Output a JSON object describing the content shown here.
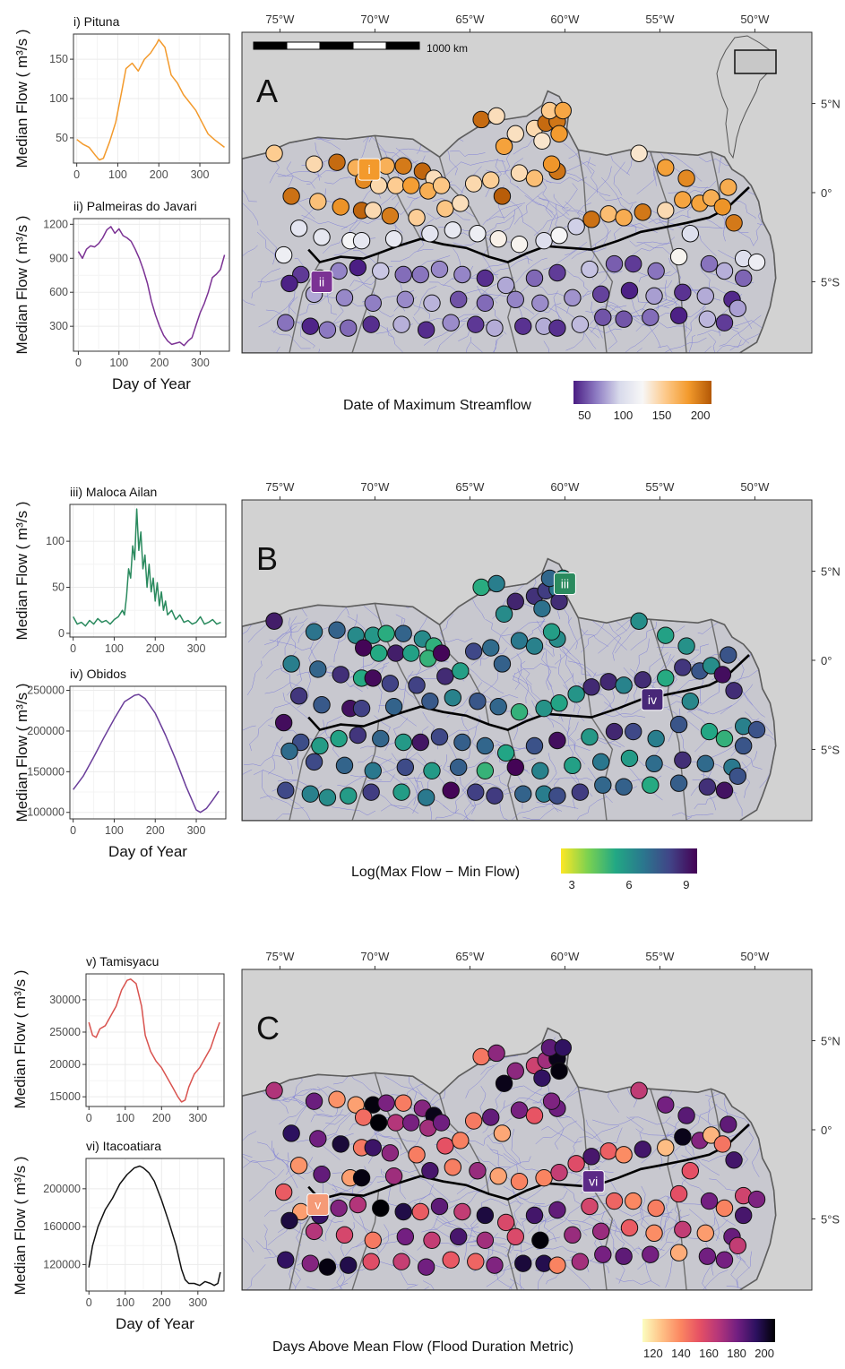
{
  "panels": [
    {
      "letter": "A",
      "legend_title": "Date of Maximum Streamflow",
      "legend_ticks": [
        "50",
        "100",
        "150",
        "200"
      ],
      "legend_stops": [
        "#4a1d83",
        "#8e7cc3",
        "#d8daeb",
        "#f7f7f7",
        "#fdc98a",
        "#f39a2c",
        "#b35806"
      ],
      "scalebar_label": "1000 km",
      "inset": true,
      "markers": [
        {
          "label": "i",
          "lon": -70.3,
          "lat": 1.3,
          "color": "#f39a2c"
        },
        {
          "label": "ii",
          "lon": -72.8,
          "lat": -5.0,
          "color": "#7b3294"
        }
      ]
    },
    {
      "letter": "B",
      "legend_title": "Log(Max Flow − Min Flow)",
      "legend_ticks": [
        "3",
        "6",
        "9"
      ],
      "legend_stops": [
        "#fde725",
        "#7ad151",
        "#22a884",
        "#2a788e",
        "#414487",
        "#440154"
      ],
      "scalebar_label": "",
      "inset": false,
      "markers": [
        {
          "label": "iii",
          "lon": -60.0,
          "lat": 4.3,
          "color": "#2a8a5e"
        },
        {
          "label": "iv",
          "lon": -55.4,
          "lat": -2.2,
          "color": "#482878"
        }
      ]
    },
    {
      "letter": "C",
      "legend_title": "Days Above Mean Flow (Flood Duration Metric)",
      "legend_ticks": [
        "120",
        "140",
        "160",
        "180",
        "200"
      ],
      "legend_stops": [
        "#fcfdbf",
        "#fec287",
        "#fb8761",
        "#e65164",
        "#b5367a",
        "#721f81",
        "#2c115f",
        "#000004"
      ],
      "scalebar_label": "",
      "inset": false,
      "markers": [
        {
          "label": "v",
          "lon": -73.0,
          "lat": -4.2,
          "color": "#f59a77"
        },
        {
          "label": "vi",
          "lon": -58.5,
          "lat": -2.9,
          "color": "#5b2a86"
        }
      ]
    }
  ],
  "map_axes": {
    "lon_ticks": [
      "75°W",
      "70°W",
      "65°W",
      "60°W",
      "55°W",
      "50°W"
    ],
    "lon_values": [
      -75,
      -70,
      -65,
      -60,
      -55,
      -50
    ],
    "lat_ticks": [
      "5°N",
      "0°",
      "5°S"
    ],
    "lat_values": [
      5,
      0,
      -5
    ],
    "lon_range": [
      -77.0,
      -47.0
    ],
    "lat_range": [
      -9.0,
      9.0
    ]
  },
  "chart_data": [
    {
      "type": "line",
      "title": "i) Pituna",
      "xlabel": "",
      "ylabel": "Median Flow ( m³/s )",
      "color": "#f39a2c",
      "xlim": [
        -8,
        372
      ],
      "ylim": [
        18,
        182
      ],
      "xticks": [
        0,
        100,
        200,
        300
      ],
      "yticks": [
        50,
        100,
        150
      ],
      "x": [
        0,
        15,
        30,
        45,
        55,
        65,
        80,
        95,
        110,
        120,
        135,
        150,
        165,
        180,
        195,
        200,
        215,
        230,
        245,
        260,
        275,
        290,
        305,
        320,
        335,
        350,
        360
      ],
      "y": [
        48,
        42,
        38,
        28,
        22,
        24,
        45,
        70,
        110,
        138,
        145,
        135,
        150,
        158,
        170,
        175,
        165,
        130,
        120,
        105,
        95,
        85,
        70,
        55,
        48,
        42,
        38
      ]
    },
    {
      "type": "line",
      "title": "ii) Palmeiras do Javari",
      "xlabel": "Day of Year",
      "ylabel": "Median Flow ( m³/s )",
      "color": "#7b3294",
      "xlim": [
        -12,
        372
      ],
      "ylim": [
        80,
        1250
      ],
      "xticks": [
        0,
        100,
        200,
        300
      ],
      "yticks": [
        300,
        600,
        900,
        1200
      ],
      "x": [
        0,
        10,
        20,
        30,
        40,
        50,
        60,
        70,
        80,
        90,
        100,
        110,
        120,
        130,
        140,
        150,
        160,
        170,
        180,
        190,
        200,
        210,
        220,
        230,
        240,
        250,
        260,
        270,
        280,
        290,
        300,
        310,
        320,
        330,
        340,
        350,
        360
      ],
      "y": [
        960,
        900,
        980,
        1010,
        1000,
        1030,
        1080,
        1150,
        1180,
        1120,
        1160,
        1100,
        1080,
        1050,
        980,
        900,
        800,
        680,
        520,
        400,
        300,
        220,
        170,
        140,
        150,
        160,
        130,
        170,
        200,
        310,
        420,
        500,
        600,
        730,
        760,
        800,
        930
      ]
    },
    {
      "type": "line",
      "title": "iii) Maloca Ailan",
      "xlabel": "",
      "ylabel": "Median Flow ( m³/s )",
      "color": "#2a8a5e",
      "xlim": [
        -8,
        372
      ],
      "ylim": [
        -4,
        140
      ],
      "xticks": [
        0,
        100,
        200,
        300
      ],
      "yticks": [
        0,
        50,
        100
      ],
      "x": [
        0,
        10,
        20,
        30,
        40,
        50,
        60,
        70,
        80,
        90,
        100,
        110,
        120,
        125,
        130,
        135,
        140,
        145,
        150,
        155,
        160,
        165,
        170,
        175,
        180,
        185,
        190,
        195,
        200,
        205,
        210,
        215,
        220,
        225,
        230,
        240,
        250,
        260,
        270,
        280,
        290,
        300,
        310,
        320,
        330,
        340,
        350,
        360
      ],
      "y": [
        18,
        10,
        12,
        8,
        14,
        10,
        16,
        12,
        14,
        10,
        15,
        18,
        25,
        20,
        40,
        70,
        60,
        95,
        80,
        135,
        90,
        110,
        70,
        85,
        50,
        75,
        45,
        60,
        35,
        55,
        30,
        45,
        25,
        35,
        20,
        25,
        15,
        20,
        12,
        14,
        10,
        12,
        18,
        10,
        12,
        15,
        10,
        12
      ]
    },
    {
      "type": "line",
      "title": "iv) Obidos",
      "xlabel": "Day of Year",
      "ylabel": "Median Flow ( m³/s )",
      "color": "#6a3d9a",
      "xlim": [
        -8,
        372
      ],
      "ylim": [
        92000,
        255000
      ],
      "xticks": [
        0,
        100,
        200,
        300
      ],
      "yticks": [
        100000,
        150000,
        200000,
        250000
      ],
      "x": [
        0,
        25,
        50,
        75,
        100,
        125,
        150,
        160,
        175,
        200,
        225,
        250,
        275,
        300,
        310,
        325,
        340,
        355
      ],
      "y": [
        128000,
        145000,
        168000,
        192000,
        215000,
        236000,
        244000,
        245000,
        240000,
        222000,
        195000,
        165000,
        132000,
        103000,
        100000,
        105000,
        115000,
        126000
      ]
    },
    {
      "type": "line",
      "title": "v) Tamisyacu",
      "xlabel": "",
      "ylabel": "Median Flow ( m³/s )",
      "color": "#d9534f",
      "xlim": [
        -8,
        372
      ],
      "ylim": [
        13500,
        34000
      ],
      "xticks": [
        0,
        100,
        200,
        300
      ],
      "yticks": [
        15000,
        20000,
        25000,
        30000
      ],
      "x": [
        0,
        10,
        20,
        30,
        45,
        60,
        75,
        90,
        105,
        115,
        130,
        145,
        155,
        170,
        185,
        200,
        215,
        230,
        245,
        255,
        265,
        275,
        290,
        305,
        320,
        335,
        350,
        360
      ],
      "y": [
        26500,
        24500,
        24200,
        25500,
        26000,
        27500,
        29000,
        31500,
        33000,
        33200,
        32500,
        29000,
        24500,
        22000,
        20500,
        19500,
        18000,
        16500,
        15000,
        14200,
        14500,
        16500,
        18500,
        19500,
        21000,
        22500,
        25000,
        26500
      ]
    },
    {
      "type": "line",
      "title": "vi) Itacoatiara",
      "xlabel": "Day of Year",
      "ylabel": "Median Flow ( m³/s )",
      "color": "#111111",
      "xlim": [
        -8,
        372
      ],
      "ylim": [
        92000,
        232000
      ],
      "xticks": [
        0,
        100,
        200,
        300
      ],
      "yticks": [
        120000,
        160000,
        200000
      ],
      "x": [
        0,
        10,
        25,
        45,
        65,
        85,
        105,
        125,
        140,
        150,
        165,
        180,
        200,
        220,
        240,
        255,
        265,
        275,
        290,
        305,
        320,
        335,
        345,
        355,
        362
      ],
      "y": [
        117000,
        140000,
        160000,
        178000,
        190000,
        205000,
        215000,
        222000,
        224000,
        222000,
        217000,
        208000,
        188000,
        165000,
        140000,
        115000,
        104000,
        100000,
        100000,
        98000,
        102000,
        100000,
        98000,
        100000,
        112000
      ]
    }
  ]
}
